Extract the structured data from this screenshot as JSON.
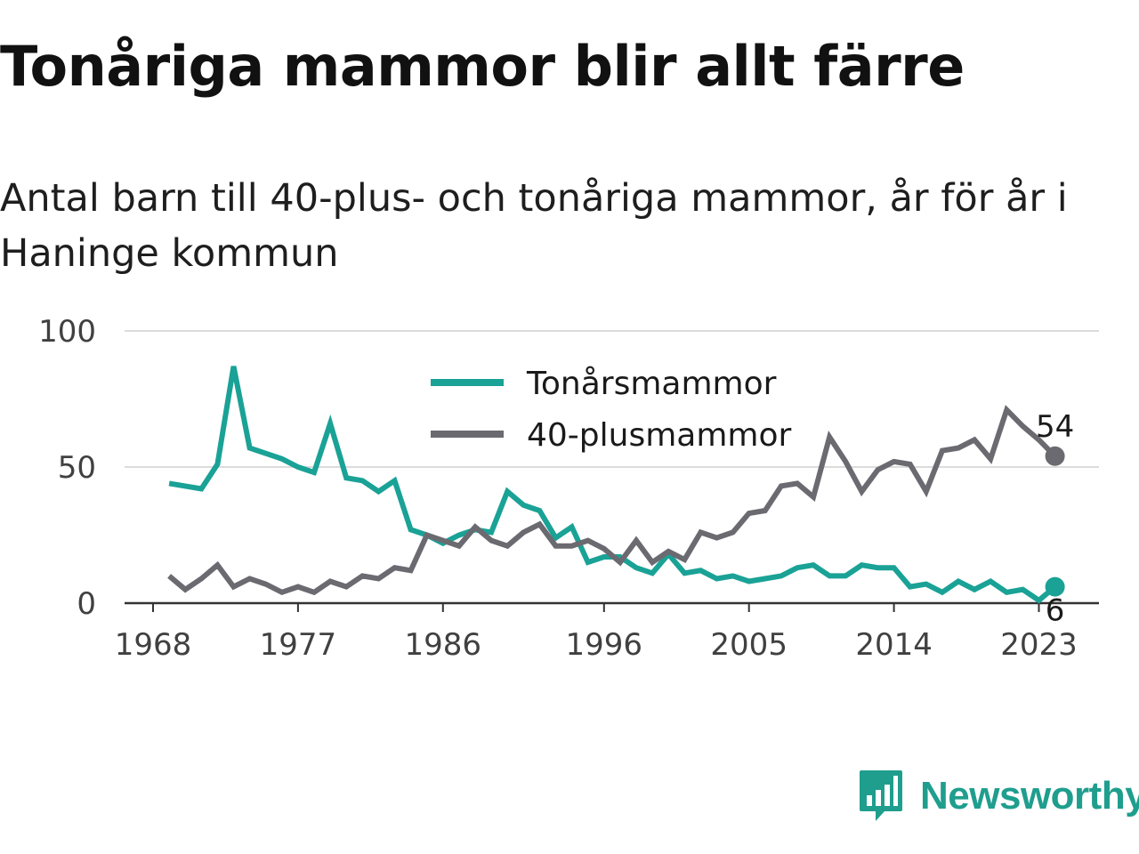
{
  "title": "Tonåriga mammor blir allt färre",
  "subtitle": "Antal barn till 40-plus- och tonåriga mammor, år för år i Haninge kommun",
  "brand": {
    "name": "Newsworthy",
    "icon": "newsworthy-logo-icon",
    "color": "#1f9e8e"
  },
  "chart_data": {
    "type": "line",
    "x": [
      1969,
      1970,
      1971,
      1972,
      1973,
      1974,
      1975,
      1976,
      1977,
      1978,
      1979,
      1980,
      1981,
      1982,
      1983,
      1984,
      1985,
      1986,
      1987,
      1988,
      1989,
      1990,
      1991,
      1992,
      1993,
      1994,
      1995,
      1996,
      1997,
      1998,
      1999,
      2000,
      2001,
      2002,
      2003,
      2004,
      2005,
      2006,
      2007,
      2008,
      2009,
      2010,
      2011,
      2012,
      2013,
      2014,
      2015,
      2016,
      2017,
      2018,
      2019,
      2020,
      2021,
      2022,
      2023,
      2024
    ],
    "x_ticks": [
      "1968",
      "1977",
      "1986",
      "1996",
      "2005",
      "2014",
      "2023"
    ],
    "y_ticks": [
      "0",
      "50",
      "100"
    ],
    "ylim": [
      0,
      100
    ],
    "grid": true,
    "legend_position": "top-center",
    "series": [
      {
        "name": "Tonårsmammor",
        "color": "#1aa296",
        "values": [
          44,
          43,
          42,
          51,
          87,
          57,
          55,
          53,
          50,
          48,
          66,
          46,
          45,
          41,
          45,
          27,
          25,
          22,
          25,
          27,
          26,
          41,
          36,
          34,
          24,
          28,
          15,
          17,
          17,
          13,
          11,
          18,
          11,
          12,
          9,
          10,
          8,
          9,
          10,
          13,
          14,
          10,
          10,
          14,
          13,
          13,
          6,
          7,
          4,
          8,
          5,
          8,
          4,
          5,
          1,
          6
        ],
        "end_label": "6"
      },
      {
        "name": "40-plusmammor",
        "color": "#6b6a70",
        "values": [
          10,
          5,
          9,
          14,
          6,
          9,
          7,
          4,
          6,
          4,
          8,
          6,
          10,
          9,
          13,
          12,
          25,
          23,
          21,
          28,
          23,
          21,
          26,
          29,
          21,
          21,
          23,
          20,
          15,
          23,
          15,
          19,
          16,
          26,
          24,
          26,
          33,
          34,
          43,
          44,
          39,
          61,
          52,
          41,
          49,
          52,
          51,
          41,
          56,
          57,
          60,
          53,
          71,
          65,
          60,
          54
        ],
        "end_label": "54"
      }
    ]
  }
}
